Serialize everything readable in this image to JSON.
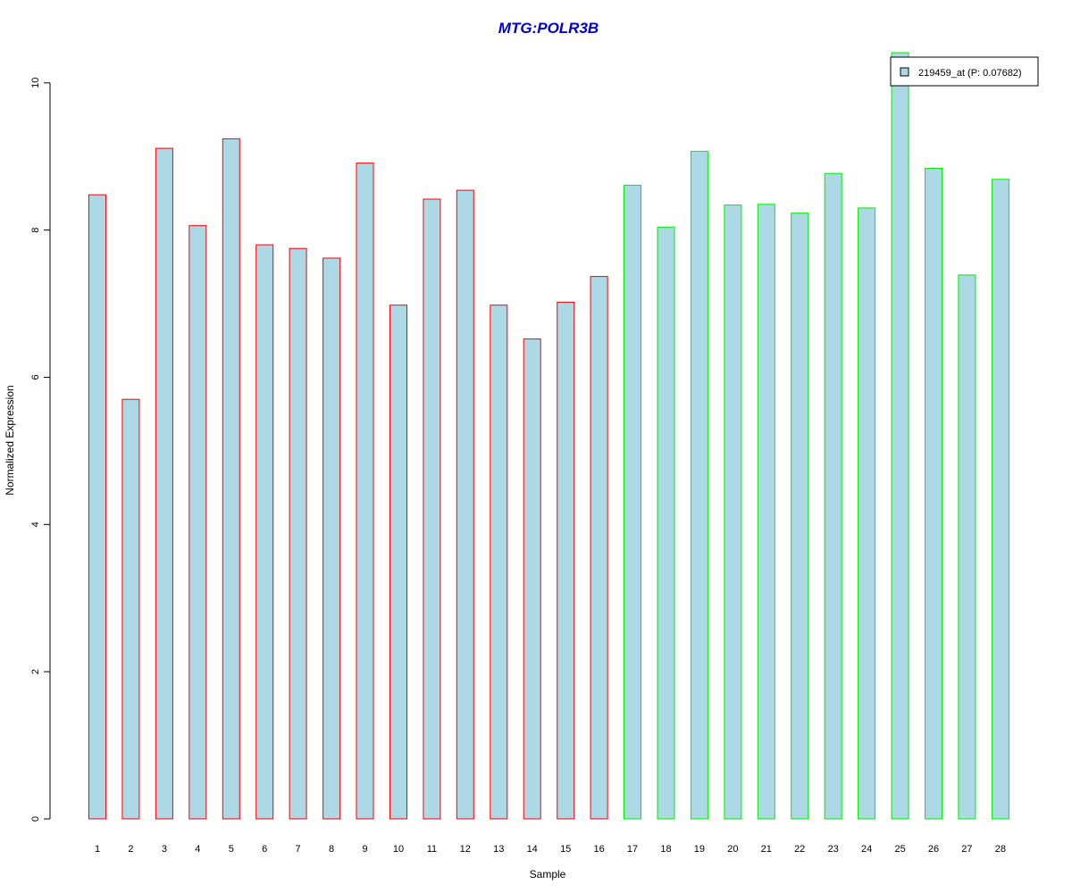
{
  "chart_data": {
    "type": "bar",
    "title": "MTG:POLR3B",
    "xlabel": "Sample",
    "ylabel": "Normalized Expression",
    "categories": [
      "1",
      "2",
      "3",
      "4",
      "5",
      "6",
      "7",
      "8",
      "9",
      "10",
      "11",
      "12",
      "13",
      "14",
      "15",
      "16",
      "17",
      "18",
      "19",
      "20",
      "21",
      "22",
      "23",
      "24",
      "25",
      "26",
      "27",
      "28"
    ],
    "values": [
      8.48,
      5.7,
      9.11,
      8.06,
      9.24,
      7.8,
      7.75,
      7.62,
      8.91,
      6.98,
      8.42,
      8.54,
      6.98,
      6.52,
      7.02,
      7.37,
      8.61,
      8.04,
      9.07,
      8.34,
      8.35,
      8.23,
      8.77,
      8.3,
      10.41,
      8.84,
      7.39,
      8.69
    ],
    "group_outline": [
      "red",
      "red",
      "red",
      "red",
      "red",
      "red",
      "red",
      "red",
      "red",
      "red",
      "red",
      "red",
      "red",
      "red",
      "red",
      "red",
      "green",
      "green",
      "green",
      "green",
      "green",
      "green",
      "green",
      "green",
      "green",
      "green",
      "green",
      "green"
    ],
    "yticks": [
      0,
      2,
      4,
      6,
      8,
      10
    ],
    "ylim": [
      0,
      10.41
    ],
    "legend": {
      "label": "219459_at (P: 0.07682)",
      "placement": "top-right"
    },
    "colors": {
      "bar_fill": "#add8e6",
      "outline_red": "#ff0000",
      "outline_green": "#00ee00",
      "title": "#0000cc"
    },
    "grid": false
  }
}
